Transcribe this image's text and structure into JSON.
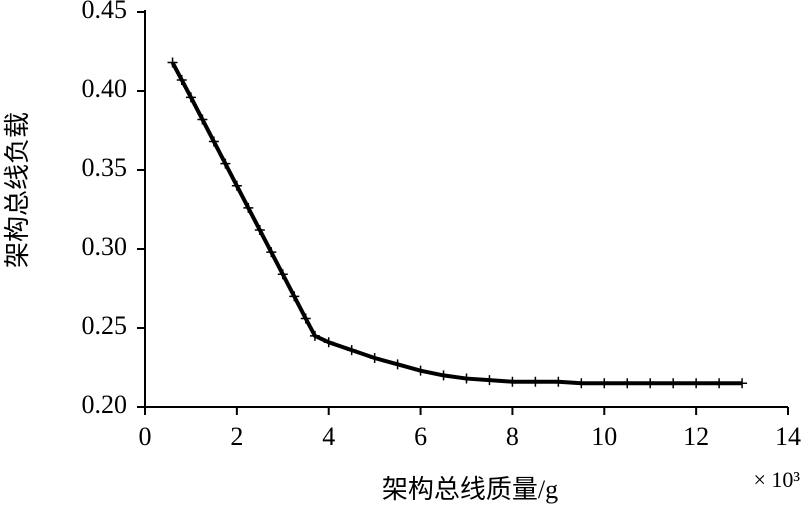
{
  "chart_data": {
    "type": "line",
    "marker": "+",
    "color": "#000000",
    "xlabel": "架构总线质量/g",
    "ylabel": "架构总线负载",
    "x_multiplier": "× 10³",
    "x": [
      0.6,
      0.8,
      1.0,
      1.25,
      1.5,
      1.75,
      2.0,
      2.25,
      2.5,
      2.75,
      3.0,
      3.25,
      3.5,
      3.7,
      4.0,
      4.5,
      5.0,
      5.5,
      6.0,
      6.5,
      7.0,
      7.5,
      8.0,
      8.5,
      9.0,
      9.5,
      10.0,
      10.5,
      11.0,
      11.5,
      12.0,
      12.5,
      13.0
    ],
    "values": [
      0.418,
      0.407,
      0.396,
      0.382,
      0.368,
      0.354,
      0.34,
      0.326,
      0.312,
      0.298,
      0.284,
      0.27,
      0.256,
      0.245,
      0.241,
      0.236,
      0.231,
      0.227,
      0.223,
      0.22,
      0.218,
      0.217,
      0.216,
      0.216,
      0.216,
      0.215,
      0.215,
      0.215,
      0.215,
      0.215,
      0.215,
      0.215,
      0.215
    ],
    "xlim": [
      0,
      14
    ],
    "xticks": [
      0,
      2,
      4,
      6,
      8,
      10,
      12,
      14
    ],
    "ylim": [
      0.2,
      0.45
    ],
    "yticks": [
      {
        "value": 0.2,
        "label": "0.20"
      },
      0.25,
      {
        "value": 0.3,
        "label": "0.30"
      },
      0.35,
      {
        "value": 0.4,
        "label": "0.40"
      },
      0.45
    ]
  }
}
